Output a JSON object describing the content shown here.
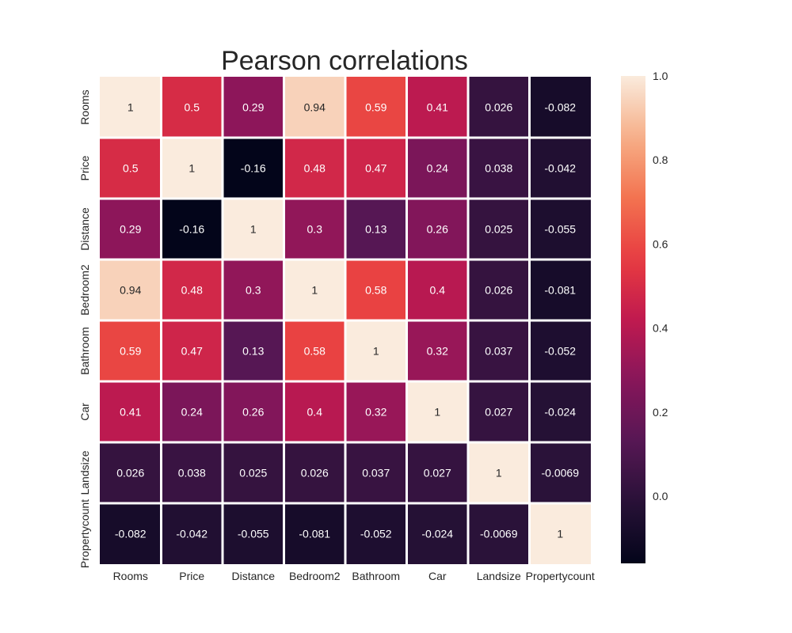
{
  "chart_data": {
    "type": "heatmap",
    "title": "Pearson correlations",
    "xlabel": "",
    "ylabel": "",
    "categories": [
      "Rooms",
      "Price",
      "Distance",
      "Bedroom2",
      "Bathroom",
      "Car",
      "Landsize",
      "Propertycount"
    ],
    "values": [
      [
        1,
        0.5,
        0.29,
        0.94,
        0.59,
        0.41,
        0.026,
        -0.082
      ],
      [
        0.5,
        1,
        -0.16,
        0.48,
        0.47,
        0.24,
        0.038,
        -0.042
      ],
      [
        0.29,
        -0.16,
        1,
        0.3,
        0.13,
        0.26,
        0.025,
        -0.055
      ],
      [
        0.94,
        0.48,
        0.3,
        1,
        0.58,
        0.4,
        0.026,
        -0.081
      ],
      [
        0.59,
        0.47,
        0.13,
        0.58,
        1,
        0.32,
        0.037,
        -0.052
      ],
      [
        0.41,
        0.24,
        0.26,
        0.4,
        0.32,
        1,
        0.027,
        -0.024
      ],
      [
        0.026,
        0.038,
        0.025,
        0.026,
        0.037,
        0.027,
        1,
        -0.0069
      ],
      [
        -0.082,
        -0.042,
        -0.055,
        -0.081,
        -0.052,
        -0.024,
        -0.0069,
        1
      ]
    ],
    "colorbar": {
      "range": [
        -0.16,
        1.0
      ],
      "ticks": [
        "0.0",
        "0.2",
        "0.4",
        "0.6",
        "0.8",
        "1.0"
      ],
      "colormap": "rocket",
      "placement": "right"
    },
    "grid": false
  }
}
